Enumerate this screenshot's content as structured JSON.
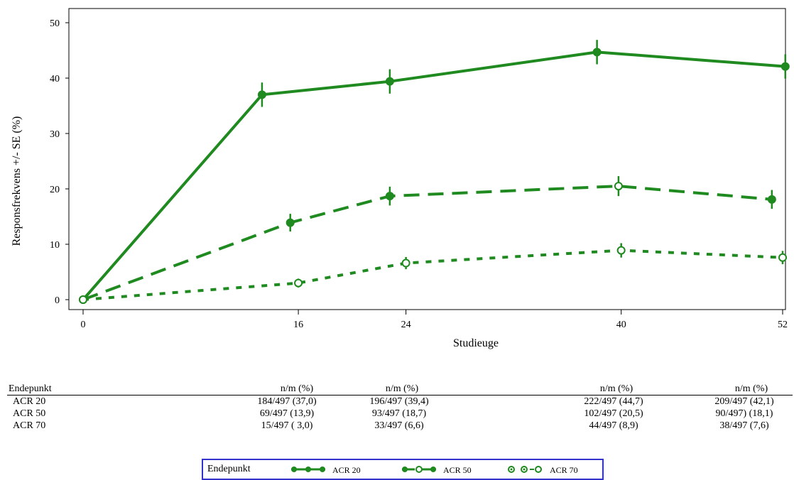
{
  "colors": {
    "series": "#1f8a1f",
    "legend_border": "#3333cc"
  },
  "chart_data": {
    "type": "line",
    "xlabel": "Studieuge",
    "ylabel": "Responsfrekvens +/- SE (%)",
    "xlim": [
      0,
      52
    ],
    "ylim": [
      0,
      50
    ],
    "x_ticks": [
      "0",
      "16",
      "24",
      "40",
      "52"
    ],
    "y_ticks": [
      "0",
      "10",
      "20",
      "30",
      "40",
      "50"
    ],
    "series": [
      {
        "name": "ACR 20",
        "style": "solid",
        "marker": "filled-circle",
        "x": [
          0,
          16,
          24,
          40,
          52
        ],
        "values": [
          0,
          37.0,
          39.4,
          44.7,
          42.1
        ],
        "se": [
          0,
          2.2,
          2.2,
          2.2,
          2.2
        ]
      },
      {
        "name": "ACR 50",
        "style": "dashed",
        "marker": "half-circle",
        "x": [
          0,
          16,
          24,
          40,
          52
        ],
        "values": [
          0,
          13.9,
          18.7,
          20.5,
          18.1
        ],
        "se": [
          0,
          1.6,
          1.7,
          1.8,
          1.7
        ]
      },
      {
        "name": "ACR 70",
        "style": "dotted",
        "marker": "open-circle",
        "x": [
          0,
          16,
          24,
          40,
          52
        ],
        "values": [
          0,
          3.0,
          6.6,
          8.9,
          7.6
        ],
        "se": [
          0,
          0.8,
          1.1,
          1.3,
          1.2
        ]
      }
    ]
  },
  "table": {
    "header_label": "Endepunkt",
    "col_header": "n/m (%)",
    "rows": [
      {
        "label": "ACR 20",
        "cells": [
          "184/497 (37,0)",
          "196/497 (39,4)",
          "222/497 (44,7)",
          "209/497 (42,1)"
        ]
      },
      {
        "label": "ACR 50",
        "cells": [
          "69/497 (13,9)",
          "93/497 (18,7)",
          "102/497 (20,5)",
          "90/497) (18,1)"
        ]
      },
      {
        "label": "ACR 70",
        "cells": [
          "15/497 ( 3,0)",
          "33/497 (6,6)",
          "44/497 (8,9)",
          "38/497 (7,6)"
        ]
      }
    ]
  },
  "legend": {
    "title": "Endepunkt",
    "items": [
      "ACR 20",
      "ACR 50",
      "ACR 70"
    ]
  }
}
